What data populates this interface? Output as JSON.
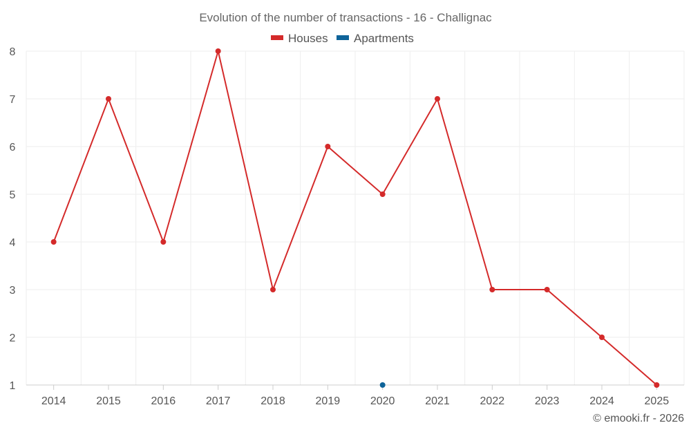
{
  "chart_data": {
    "type": "line",
    "title": "Evolution of the number of transactions - 16 - Challignac",
    "categories": [
      "2014",
      "2015",
      "2016",
      "2017",
      "2018",
      "2019",
      "2020",
      "2021",
      "2022",
      "2023",
      "2024",
      "2025"
    ],
    "series": [
      {
        "name": "Houses",
        "color": "#d42a2a",
        "values": [
          4,
          7,
          4,
          8,
          3,
          6,
          5,
          7,
          3,
          3,
          2,
          1
        ]
      },
      {
        "name": "Apartments",
        "color": "#0e6399",
        "values": [
          null,
          null,
          null,
          null,
          null,
          null,
          1,
          null,
          null,
          null,
          null,
          null
        ]
      }
    ],
    "yticks": [
      "1",
      "2",
      "3",
      "4",
      "5",
      "6",
      "7",
      "8"
    ],
    "ylim": [
      1,
      8
    ],
    "xlabel": "",
    "ylabel": "",
    "grid": true,
    "legend_position": "top-center"
  },
  "credit": "© emooki.fr - 2026"
}
